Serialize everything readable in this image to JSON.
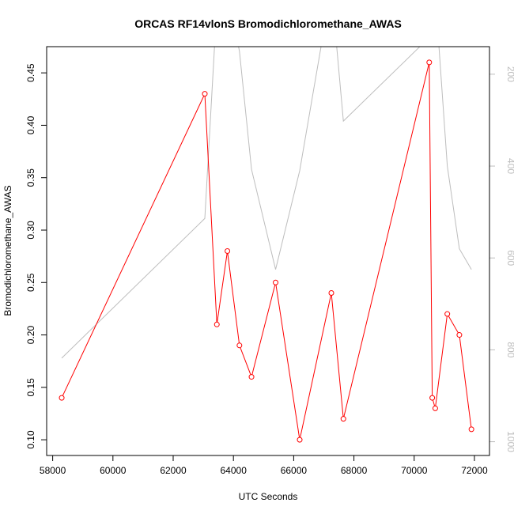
{
  "chart_data": {
    "type": "line",
    "title": "ORCAS RF14vlonS Bromodichloromethane_AWAS",
    "xlabel": "UTC Seconds",
    "ylabel": "Bromodichloromethane_AWAS",
    "xlim": [
      57800,
      72500
    ],
    "ylim": [
      0.085,
      0.475
    ],
    "x_ticks": [
      "58000",
      "60000",
      "62000",
      "64000",
      "66000",
      "68000",
      "70000",
      "72000"
    ],
    "y_ticks": [
      "0.10",
      "0.15",
      "0.20",
      "0.25",
      "0.30",
      "0.35",
      "0.40",
      "0.45"
    ],
    "y2lim": [
      1030,
      140
    ],
    "y2_ticks": [
      "200",
      "400",
      "600",
      "800",
      "1000"
    ],
    "grid": false,
    "series": [
      {
        "axis": "left",
        "color": "#ff0000",
        "markers": true,
        "x": [
          58300,
          63050,
          63450,
          63800,
          64200,
          64600,
          65400,
          66200,
          67250,
          67650,
          70500,
          70600,
          70700,
          71100,
          71500,
          71900
        ],
        "y": [
          0.14,
          0.43,
          0.21,
          0.28,
          0.19,
          0.16,
          0.25,
          0.1,
          0.24,
          0.12,
          0.46,
          0.14,
          0.13,
          0.22,
          0.2,
          0.11
        ]
      },
      {
        "axis": "right",
        "color": "#bdbdbd",
        "markers": false,
        "x": [
          58300,
          63050,
          63450,
          63800,
          64200,
          64600,
          65400,
          66200,
          67250,
          67650,
          70500,
          70600,
          70700,
          71100,
          71500,
          71900
        ],
        "y": [
          818,
          514,
          50,
          20,
          150,
          407,
          625,
          410,
          10,
          302,
          120,
          15,
          25,
          400,
          580,
          625
        ]
      }
    ]
  }
}
